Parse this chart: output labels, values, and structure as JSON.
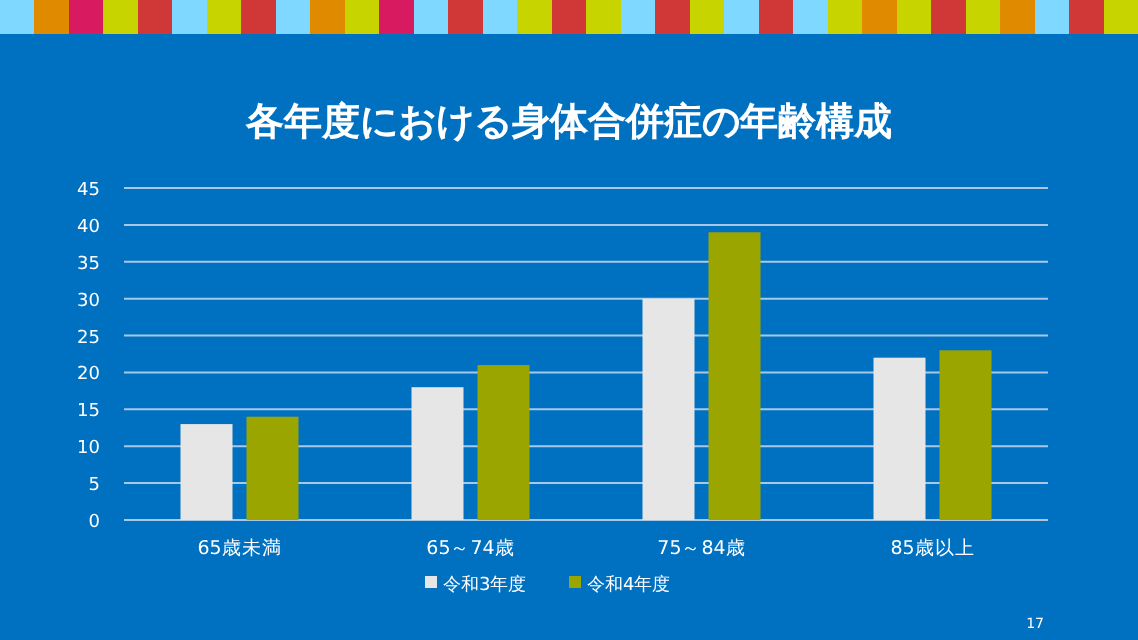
{
  "chart_data": {
    "type": "bar",
    "title": "各年度における身体合併症の年齢構成",
    "categories": [
      "65歳未満",
      "65～74歳",
      "75～84歳",
      "85歳以上"
    ],
    "series": [
      {
        "name": "令和3年度",
        "color": "#e7e6e6",
        "values": [
          13,
          18,
          30,
          22
        ]
      },
      {
        "name": "令和4年度",
        "color": "#9aa500",
        "values": [
          14,
          21,
          39,
          23
        ]
      }
    ],
    "ylim": [
      0,
      45
    ],
    "yticks": [
      0,
      5,
      10,
      15,
      20,
      25,
      30,
      35,
      40,
      45
    ],
    "grid": "y",
    "legend": "bottom",
    "annotations": [
      "17"
    ]
  }
}
